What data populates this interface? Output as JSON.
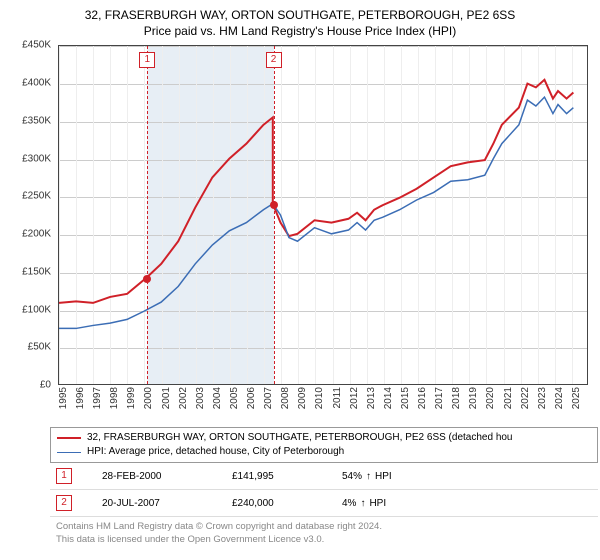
{
  "title_line1": "32, FRASERBURGH WAY, ORTON SOUTHGATE, PETERBOROUGH, PE2 6SS",
  "title_line2": "Price paid vs. HM Land Registry's House Price Index (HPI)",
  "chart": {
    "type": "line",
    "background_color": "#ffffff",
    "grid_color": "#cccccc",
    "grid_minor_color": "#eeeeee",
    "shade_color": "#e7eef5",
    "border_color": "#444444",
    "x_min": 1995.0,
    "x_max": 2026.0,
    "y_min": 0,
    "y_max": 450000,
    "y_ticks": [
      0,
      50000,
      100000,
      150000,
      200000,
      250000,
      300000,
      350000,
      400000,
      450000
    ],
    "y_tick_labels": [
      "£0",
      "£50K",
      "£100K",
      "£150K",
      "£200K",
      "£250K",
      "£300K",
      "£350K",
      "£400K",
      "£450K"
    ],
    "x_ticks": [
      1995,
      1996,
      1997,
      1998,
      1999,
      2000,
      2001,
      2002,
      2003,
      2004,
      2005,
      2006,
      2007,
      2008,
      2009,
      2010,
      2011,
      2012,
      2013,
      2014,
      2015,
      2016,
      2017,
      2018,
      2019,
      2020,
      2021,
      2022,
      2023,
      2024,
      2025
    ],
    "shade_x_from": 2000.16,
    "shade_x_to": 2007.55,
    "label_fontsize": 10,
    "series": [
      {
        "name": "red",
        "color": "#d02028",
        "line_width": 2,
        "points": [
          [
            1995.0,
            108000
          ],
          [
            1996.0,
            110000
          ],
          [
            1997.0,
            108000
          ],
          [
            1998.0,
            116000
          ],
          [
            1999.0,
            120000
          ],
          [
            2000.16,
            141995
          ],
          [
            2001.0,
            160000
          ],
          [
            2002.0,
            190000
          ],
          [
            2003.0,
            235000
          ],
          [
            2004.0,
            275000
          ],
          [
            2005.0,
            300000
          ],
          [
            2006.0,
            320000
          ],
          [
            2007.0,
            345000
          ],
          [
            2007.55,
            355000
          ],
          [
            2007.55,
            240000
          ],
          [
            2008.0,
            215000
          ],
          [
            2008.5,
            197000
          ],
          [
            2009.0,
            200000
          ],
          [
            2010.0,
            218000
          ],
          [
            2011.0,
            215000
          ],
          [
            2012.0,
            220000
          ],
          [
            2012.5,
            228000
          ],
          [
            2013.0,
            218000
          ],
          [
            2013.5,
            232000
          ],
          [
            2014.0,
            238000
          ],
          [
            2015.0,
            248000
          ],
          [
            2016.0,
            260000
          ],
          [
            2017.0,
            275000
          ],
          [
            2018.0,
            290000
          ],
          [
            2019.0,
            295000
          ],
          [
            2020.0,
            298000
          ],
          [
            2020.5,
            320000
          ],
          [
            2021.0,
            345000
          ],
          [
            2022.0,
            368000
          ],
          [
            2022.5,
            400000
          ],
          [
            2023.0,
            395000
          ],
          [
            2023.5,
            405000
          ],
          [
            2024.0,
            380000
          ],
          [
            2024.3,
            390000
          ],
          [
            2024.8,
            380000
          ],
          [
            2025.2,
            388000
          ]
        ]
      },
      {
        "name": "blue",
        "color": "#3b6db5",
        "line_width": 1.5,
        "points": [
          [
            1995.0,
            74000
          ],
          [
            1996.0,
            74000
          ],
          [
            1997.0,
            78000
          ],
          [
            1998.0,
            81000
          ],
          [
            1999.0,
            86000
          ],
          [
            2000.0,
            97000
          ],
          [
            2001.0,
            109000
          ],
          [
            2002.0,
            130000
          ],
          [
            2003.0,
            160000
          ],
          [
            2004.0,
            185000
          ],
          [
            2005.0,
            204000
          ],
          [
            2006.0,
            215000
          ],
          [
            2007.0,
            232000
          ],
          [
            2007.55,
            240000
          ],
          [
            2008.0,
            225000
          ],
          [
            2008.5,
            195000
          ],
          [
            2009.0,
            190000
          ],
          [
            2010.0,
            208000
          ],
          [
            2011.0,
            200000
          ],
          [
            2012.0,
            205000
          ],
          [
            2012.5,
            215000
          ],
          [
            2013.0,
            205000
          ],
          [
            2013.5,
            218000
          ],
          [
            2014.0,
            222000
          ],
          [
            2015.0,
            232000
          ],
          [
            2016.0,
            245000
          ],
          [
            2017.0,
            255000
          ],
          [
            2018.0,
            270000
          ],
          [
            2019.0,
            272000
          ],
          [
            2020.0,
            278000
          ],
          [
            2020.5,
            300000
          ],
          [
            2021.0,
            320000
          ],
          [
            2022.0,
            345000
          ],
          [
            2022.5,
            378000
          ],
          [
            2023.0,
            370000
          ],
          [
            2023.5,
            382000
          ],
          [
            2024.0,
            360000
          ],
          [
            2024.3,
            372000
          ],
          [
            2024.8,
            360000
          ],
          [
            2025.2,
            368000
          ]
        ]
      }
    ],
    "sale_markers": [
      {
        "n": "1",
        "x": 2000.16,
        "price": 141995,
        "box_color": "#d02028",
        "dot_color": "#d02028"
      },
      {
        "n": "2",
        "x": 2007.55,
        "price": 240000,
        "box_color": "#d02028",
        "dot_color": "#d02028"
      }
    ]
  },
  "legend": {
    "items": [
      {
        "color": "#d02028",
        "width": 2,
        "label": "32, FRASERBURGH WAY, ORTON SOUTHGATE, PETERBOROUGH, PE2 6SS (detached hou"
      },
      {
        "color": "#3b6db5",
        "width": 1.5,
        "label": "HPI: Average price, detached house, City of Peterborough"
      }
    ]
  },
  "sales_table": {
    "rows": [
      {
        "n": "1",
        "color": "#d02028",
        "date": "28-FEB-2000",
        "price": "£141,995",
        "hpi_pct": "54%",
        "arrow": "↑",
        "hpi_label": "HPI"
      },
      {
        "n": "2",
        "color": "#d02028",
        "date": "20-JUL-2007",
        "price": "£240,000",
        "hpi_pct": "4%",
        "arrow": "↑",
        "hpi_label": "HPI"
      }
    ]
  },
  "footer_line1": "Contains HM Land Registry data © Crown copyright and database right 2024.",
  "footer_line2": "This data is licensed under the Open Government Licence v3.0."
}
